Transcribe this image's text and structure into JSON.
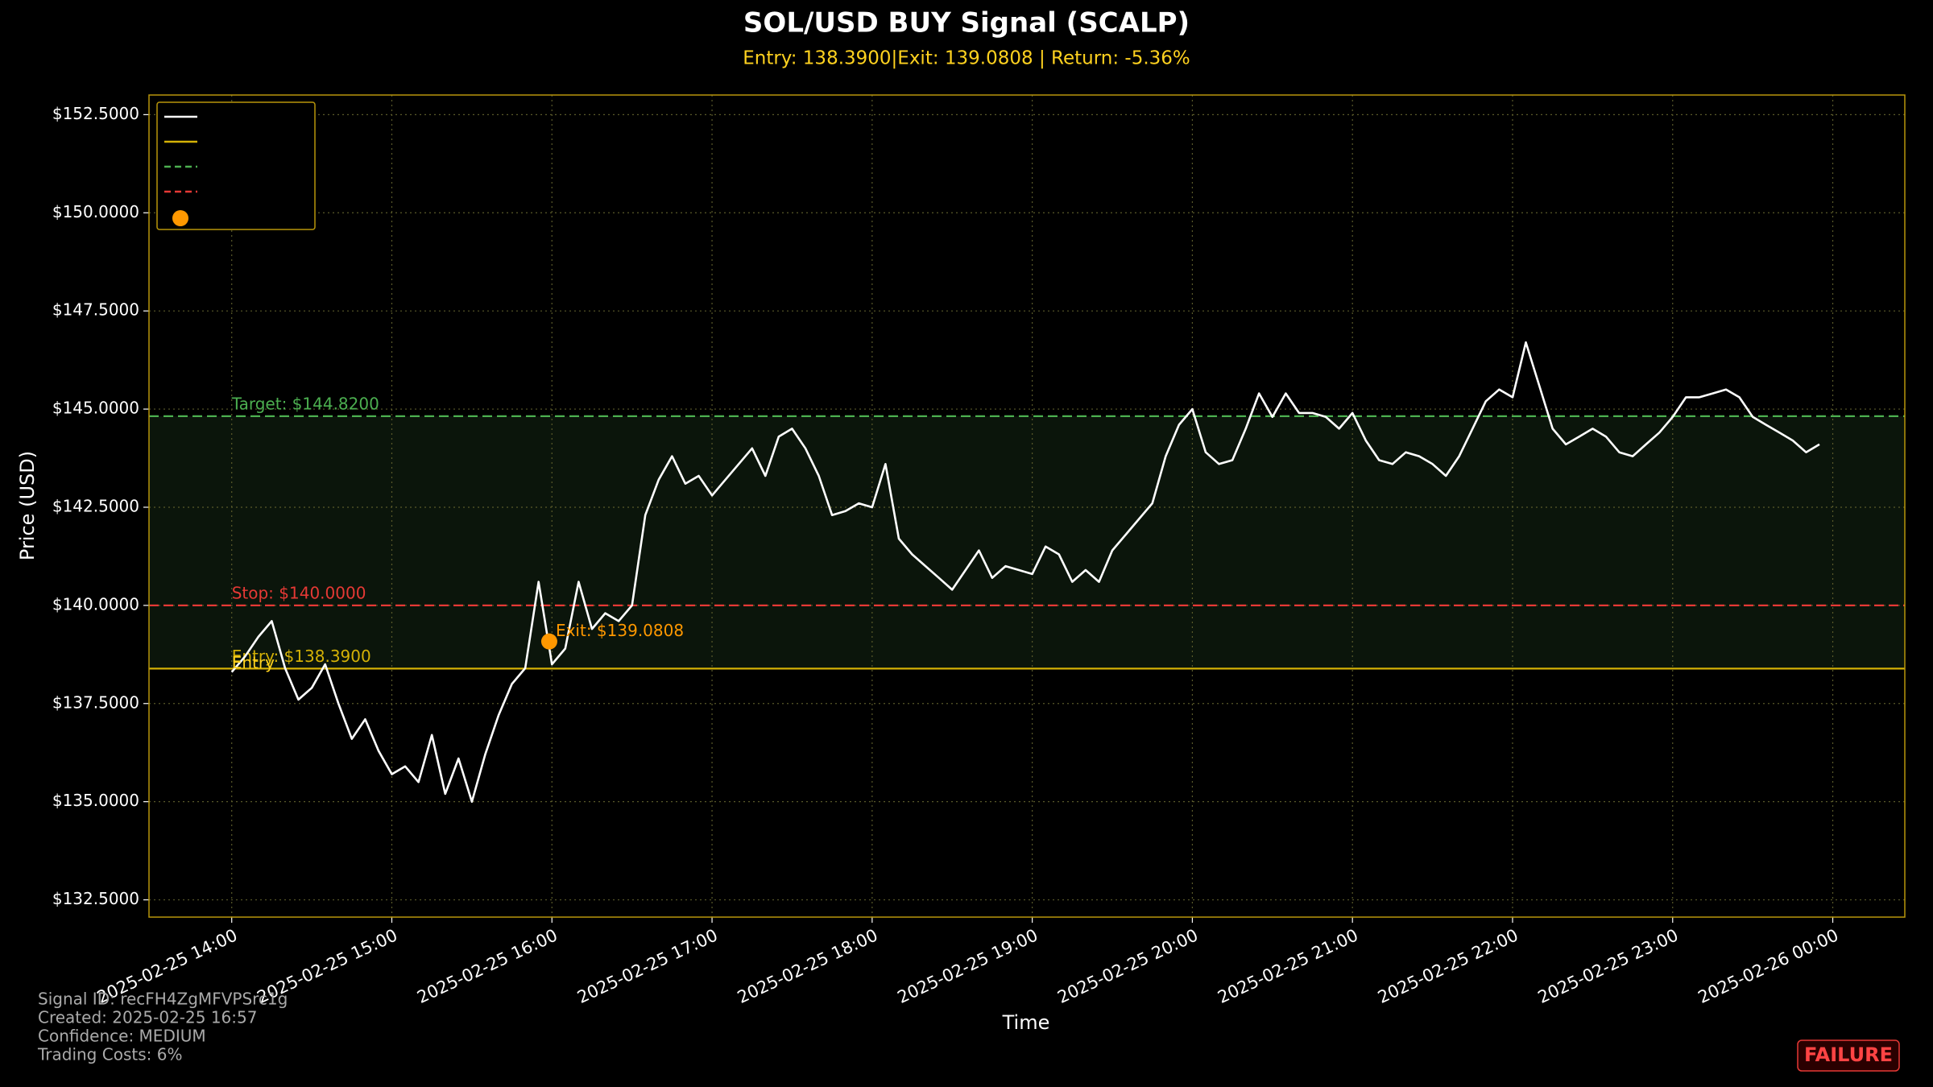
{
  "chart_data": {
    "type": "line",
    "title": "SOL/USD BUY Signal (SCALP)",
    "subtitle": "Entry: 138.3900|Exit: 139.0808 | Return: -5.36%",
    "x_label": "Time",
    "y_label": "Price (USD)",
    "x": [
      "2025-02-25 14:00",
      "2025-02-25 14:05",
      "2025-02-25 14:10",
      "2025-02-25 14:15",
      "2025-02-25 14:20",
      "2025-02-25 14:25",
      "2025-02-25 14:30",
      "2025-02-25 14:35",
      "2025-02-25 14:40",
      "2025-02-25 14:45",
      "2025-02-25 14:50",
      "2025-02-25 14:55",
      "2025-02-25 15:00",
      "2025-02-25 15:05",
      "2025-02-25 15:10",
      "2025-02-25 15:15",
      "2025-02-25 15:20",
      "2025-02-25 15:25",
      "2025-02-25 15:30",
      "2025-02-25 15:35",
      "2025-02-25 15:40",
      "2025-02-25 15:45",
      "2025-02-25 15:50",
      "2025-02-25 15:55",
      "2025-02-25 16:00",
      "2025-02-25 16:05",
      "2025-02-25 16:10",
      "2025-02-25 16:15",
      "2025-02-25 16:20",
      "2025-02-25 16:25",
      "2025-02-25 16:30",
      "2025-02-25 16:35",
      "2025-02-25 16:40",
      "2025-02-25 16:45",
      "2025-02-25 16:50",
      "2025-02-25 16:55",
      "2025-02-25 17:00",
      "2025-02-25 17:05",
      "2025-02-25 17:10",
      "2025-02-25 17:15",
      "2025-02-25 17:20",
      "2025-02-25 17:25",
      "2025-02-25 17:30",
      "2025-02-25 17:35",
      "2025-02-25 17:40",
      "2025-02-25 17:45",
      "2025-02-25 17:50",
      "2025-02-25 17:55",
      "2025-02-25 18:00",
      "2025-02-25 18:05",
      "2025-02-25 18:10",
      "2025-02-25 18:15",
      "2025-02-25 18:20",
      "2025-02-25 18:25",
      "2025-02-25 18:30",
      "2025-02-25 18:35",
      "2025-02-25 18:40",
      "2025-02-25 18:45",
      "2025-02-25 18:50",
      "2025-02-25 18:55",
      "2025-02-25 19:00",
      "2025-02-25 19:05",
      "2025-02-25 19:10",
      "2025-02-25 19:15",
      "2025-02-25 19:20",
      "2025-02-25 19:25",
      "2025-02-25 19:30",
      "2025-02-25 19:35",
      "2025-02-25 19:40",
      "2025-02-25 19:45",
      "2025-02-25 19:50",
      "2025-02-25 19:55",
      "2025-02-25 20:00",
      "2025-02-25 20:05",
      "2025-02-25 20:10",
      "2025-02-25 20:15",
      "2025-02-25 20:20",
      "2025-02-25 20:25",
      "2025-02-25 20:30",
      "2025-02-25 20:35",
      "2025-02-25 20:40",
      "2025-02-25 20:45",
      "2025-02-25 20:50",
      "2025-02-25 20:55",
      "2025-02-25 21:00",
      "2025-02-25 21:05",
      "2025-02-25 21:10",
      "2025-02-25 21:15",
      "2025-02-25 21:20",
      "2025-02-25 21:25",
      "2025-02-25 21:30",
      "2025-02-25 21:35",
      "2025-02-25 21:40",
      "2025-02-25 21:45",
      "2025-02-25 21:50",
      "2025-02-25 21:55",
      "2025-02-25 22:00",
      "2025-02-25 22:05",
      "2025-02-25 22:10",
      "2025-02-25 22:15",
      "2025-02-25 22:20",
      "2025-02-25 22:25",
      "2025-02-25 22:30",
      "2025-02-25 22:35",
      "2025-02-25 22:40",
      "2025-02-25 22:45",
      "2025-02-25 22:50",
      "2025-02-25 22:55",
      "2025-02-25 23:00",
      "2025-02-25 23:05",
      "2025-02-25 23:10",
      "2025-02-25 23:15",
      "2025-02-25 23:20",
      "2025-02-25 23:25",
      "2025-02-25 23:30",
      "2025-02-25 23:35",
      "2025-02-25 23:40",
      "2025-02-25 23:45",
      "2025-02-25 23:50",
      "2025-02-25 23:55"
    ],
    "series": [
      {
        "color": "#ffffff",
        "values": [
          138.3,
          138.7,
          139.2,
          139.6,
          138.4,
          137.6,
          137.9,
          138.5,
          137.5,
          136.6,
          137.1,
          136.3,
          135.7,
          135.9,
          135.5,
          136.7,
          135.2,
          136.1,
          135.0,
          136.2,
          137.2,
          138.0,
          138.4,
          140.6,
          138.5,
          138.9,
          140.6,
          139.4,
          139.8,
          139.6,
          140.0,
          142.3,
          143.2,
          143.8,
          143.1,
          143.3,
          142.8,
          143.2,
          143.6,
          144.0,
          143.3,
          144.3,
          144.5,
          144.0,
          143.3,
          142.3,
          142.4,
          142.6,
          142.5,
          143.6,
          141.7,
          141.3,
          141.0,
          140.7,
          140.4,
          140.9,
          141.4,
          140.7,
          141.0,
          140.9,
          140.8,
          141.5,
          141.3,
          140.6,
          140.9,
          140.6,
          141.4,
          141.8,
          142.2,
          142.6,
          143.8,
          144.6,
          145.0,
          143.9,
          143.6,
          143.7,
          144.5,
          145.4,
          144.8,
          145.4,
          144.9,
          144.9,
          144.8,
          144.5,
          144.9,
          144.2,
          143.7,
          143.6,
          143.9,
          143.8,
          143.6,
          143.3,
          143.8,
          144.5,
          145.2,
          145.5,
          145.3,
          146.7,
          145.6,
          144.5,
          144.1,
          144.3,
          144.5,
          144.3,
          143.9,
          143.8,
          144.1,
          144.4,
          144.8,
          145.3,
          145.3,
          145.4,
          145.5,
          145.3,
          144.8,
          144.6,
          144.4,
          144.2,
          143.9,
          144.1
        ]
      }
    ],
    "start_label": "Entry",
    "levels": [
      {
        "label": "Entry: $138.3900",
        "value": 138.39,
        "color": "#d4b106",
        "style": "solid"
      },
      {
        "label": "Target: $144.8200",
        "value": 144.82,
        "color": "#4caf50",
        "style": "dashed"
      },
      {
        "label": "Stop: $140.0000",
        "value": 140.0,
        "color": "#e53935",
        "style": "dashed"
      }
    ],
    "shade_color": "#0b150b",
    "markers": [
      {
        "x": "2025-02-25 15:59",
        "value": 139.0808,
        "label": "Exit: $139.0808",
        "color": "#ff9800"
      }
    ],
    "xlim": [
      "2025-02-25 13:29",
      "2025-02-26 00:27"
    ],
    "xticks": [
      "2025-02-25 14:00",
      "2025-02-25 15:00",
      "2025-02-25 16:00",
      "2025-02-25 17:00",
      "2025-02-25 18:00",
      "2025-02-25 19:00",
      "2025-02-25 20:00",
      "2025-02-25 21:00",
      "2025-02-25 22:00",
      "2025-02-25 23:00",
      "2025-02-26 00:00"
    ],
    "ylim": [
      132.06,
      153.0
    ],
    "yticks": [
      {
        "value": 132.5,
        "label": "$132.5000"
      },
      {
        "value": 135,
        "label": "$135.0000"
      },
      {
        "value": 137.5,
        "label": "$137.5000"
      },
      {
        "value": 140,
        "label": "$140.0000"
      },
      {
        "value": 142.5,
        "label": "$142.5000"
      },
      {
        "value": 145,
        "label": "$145.0000"
      },
      {
        "value": 147.5,
        "label": "$147.5000"
      },
      {
        "value": 150,
        "label": "$150.0000"
      },
      {
        "value": 152.5,
        "label": "$152.5000"
      }
    ],
    "grid": true,
    "legend": "upper left",
    "footer": [
      "Signal ID: recFH4ZgMFVPSrc1g",
      "Created: 2025-02-25 16:57",
      "Confidence: MEDIUM",
      "Trading Costs: 6%"
    ],
    "status": "FAILURE"
  }
}
